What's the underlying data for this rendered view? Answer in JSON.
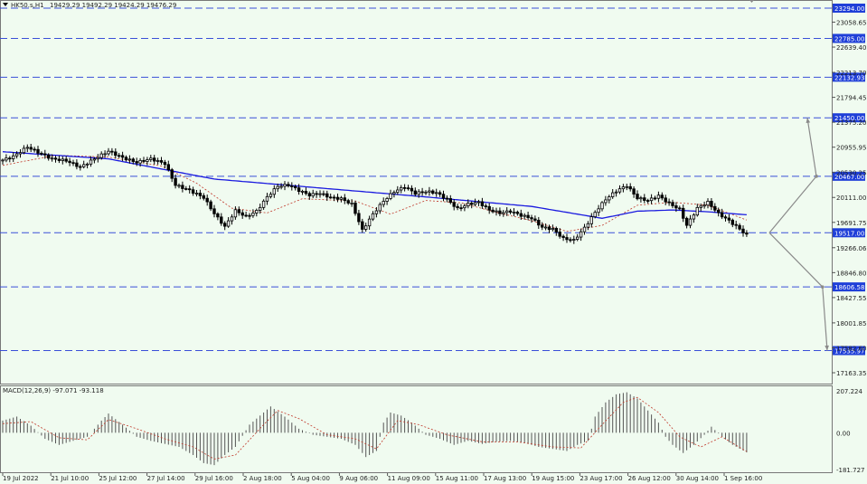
{
  "header": {
    "symbol": "HK50.s,H1",
    "ohlc": "19429.29 19492.29 19424.29 19476.29"
  },
  "chart_data": [
    {
      "type": "candlestick",
      "title": "HK50.s,H1",
      "ylim": [
        17163.65,
        23294.0
      ],
      "y_ticks": [
        "23058.65",
        "22639.40",
        "22213.70",
        "21794.45",
        "21375.20",
        "20955.95",
        "20530.25",
        "20111.00",
        "19691.75",
        "19266.06",
        "18846.80",
        "18427.55",
        "18001.85",
        "17582.60",
        "17163.35"
      ],
      "x_ticks": [
        "19 Jul 2022",
        "21 Jul 10:00",
        "25 Jul 12:00",
        "27 Jul 14:00",
        "29 Jul 16:00",
        "2 Aug 18:00",
        "5 Aug 04:00",
        "9 Aug 06:00",
        "11 Aug 09:00",
        "15 Aug 11:00",
        "17 Aug 13:00",
        "19 Aug 15:00",
        "23 Aug 17:00",
        "26 Aug 12:00",
        "30 Aug 14:00",
        "1 Sep 16:00"
      ],
      "closes_anchor": [
        [
          0,
          20740
        ],
        [
          3,
          20800
        ],
        [
          7,
          20960
        ],
        [
          10,
          20870
        ],
        [
          14,
          20760
        ],
        [
          18,
          20730
        ],
        [
          22,
          20620
        ],
        [
          26,
          20760
        ],
        [
          30,
          20890
        ],
        [
          34,
          20780
        ],
        [
          38,
          20700
        ],
        [
          42,
          20760
        ],
        [
          46,
          20680
        ],
        [
          49,
          20320
        ],
        [
          53,
          20230
        ],
        [
          57,
          20110
        ],
        [
          60,
          19840
        ],
        [
          63,
          19620
        ],
        [
          66,
          19890
        ],
        [
          69,
          19790
        ],
        [
          72,
          19880
        ],
        [
          75,
          20120
        ],
        [
          78,
          20300
        ],
        [
          81,
          20320
        ],
        [
          84,
          20230
        ],
        [
          87,
          20150
        ],
        [
          90,
          20180
        ],
        [
          93,
          20110
        ],
        [
          96,
          20090
        ],
        [
          99,
          20000
        ],
        [
          102,
          19560
        ],
        [
          105,
          19830
        ],
        [
          108,
          20050
        ],
        [
          111,
          20210
        ],
        [
          114,
          20290
        ],
        [
          117,
          20180
        ],
        [
          120,
          20210
        ],
        [
          123,
          20190
        ],
        [
          126,
          20080
        ],
        [
          129,
          19920
        ],
        [
          132,
          20000
        ],
        [
          135,
          20030
        ],
        [
          138,
          19900
        ],
        [
          141,
          19850
        ],
        [
          144,
          19880
        ],
        [
          147,
          19810
        ],
        [
          150,
          19760
        ],
        [
          153,
          19610
        ],
        [
          156,
          19580
        ],
        [
          159,
          19420
        ],
        [
          162,
          19390
        ],
        [
          165,
          19600
        ],
        [
          168,
          19860
        ],
        [
          171,
          20080
        ],
        [
          174,
          20220
        ],
        [
          177,
          20310
        ],
        [
          180,
          20100
        ],
        [
          183,
          20060
        ],
        [
          186,
          20140
        ],
        [
          189,
          20010
        ],
        [
          192,
          19910
        ],
        [
          194,
          19640
        ],
        [
          197,
          19930
        ],
        [
          200,
          20030
        ],
        [
          203,
          19840
        ],
        [
          206,
          19720
        ],
        [
          209,
          19580
        ],
        [
          211,
          19476
        ]
      ],
      "ma_blue": [
        [
          0,
          20880
        ],
        [
          30,
          20760
        ],
        [
          60,
          20420
        ],
        [
          90,
          20270
        ],
        [
          120,
          20120
        ],
        [
          150,
          19960
        ],
        [
          170,
          19760
        ],
        [
          180,
          19880
        ],
        [
          190,
          19900
        ],
        [
          200,
          19870
        ],
        [
          211,
          19820
        ]
      ],
      "ma_red_dotted": [
        [
          0,
          20650
        ],
        [
          15,
          20820
        ],
        [
          30,
          20790
        ],
        [
          45,
          20640
        ],
        [
          55,
          20350
        ],
        [
          65,
          19930
        ],
        [
          75,
          19850
        ],
        [
          85,
          20090
        ],
        [
          100,
          20050
        ],
        [
          110,
          19830
        ],
        [
          120,
          20060
        ],
        [
          130,
          20020
        ],
        [
          140,
          19860
        ],
        [
          150,
          19720
        ],
        [
          160,
          19540
        ],
        [
          170,
          19640
        ],
        [
          180,
          19980
        ],
        [
          190,
          20030
        ],
        [
          200,
          19980
        ],
        [
          211,
          19730
        ]
      ],
      "hlines": [
        23294.0,
        22785.0,
        22132.93,
        21450.0,
        20467.0,
        19517.0,
        18606.58,
        17535.97
      ],
      "hline_labels": [
        "23294.00",
        "22785.00",
        "22132.93",
        "21450.00",
        "20467.00",
        "19517.00",
        "18606.58",
        "17535.97"
      ],
      "arrows": [
        {
          "from": [
            19517.0,
            0
          ],
          "to": [
            21450.0,
            1
          ],
          "mid": [
            20467.0,
            0.5
          ]
        },
        {
          "from": [
            19517.0,
            0
          ],
          "to": [
            17535.97,
            1
          ],
          "mid": [
            18606.58,
            0.45
          ]
        }
      ]
    },
    {
      "type": "bar",
      "title": "MACD(12,26,9) -97.071 -93.118",
      "ylim": [
        -181.727,
        207.224
      ],
      "y_ticks": [
        "207.224",
        "0.00",
        "-181.727"
      ],
      "histogram_anchor": [
        [
          0,
          60
        ],
        [
          4,
          80
        ],
        [
          8,
          35
        ],
        [
          12,
          -30
        ],
        [
          16,
          -60
        ],
        [
          20,
          -40
        ],
        [
          24,
          -20
        ],
        [
          28,
          60
        ],
        [
          30,
          95
        ],
        [
          34,
          40
        ],
        [
          38,
          -20
        ],
        [
          42,
          -40
        ],
        [
          46,
          -55
        ],
        [
          50,
          -70
        ],
        [
          54,
          -110
        ],
        [
          57,
          -150
        ],
        [
          60,
          -160
        ],
        [
          63,
          -110
        ],
        [
          66,
          -70
        ],
        [
          70,
          40
        ],
        [
          74,
          100
        ],
        [
          76,
          130
        ],
        [
          80,
          80
        ],
        [
          84,
          20
        ],
        [
          88,
          -10
        ],
        [
          92,
          -20
        ],
        [
          96,
          -30
        ],
        [
          100,
          -60
        ],
        [
          103,
          -120
        ],
        [
          106,
          -90
        ],
        [
          108,
          50
        ],
        [
          110,
          100
        ],
        [
          113,
          85
        ],
        [
          116,
          50
        ],
        [
          120,
          -10
        ],
        [
          124,
          -30
        ],
        [
          128,
          -60
        ],
        [
          132,
          -40
        ],
        [
          136,
          -55
        ],
        [
          140,
          -45
        ],
        [
          144,
          -40
        ],
        [
          148,
          -50
        ],
        [
          152,
          -70
        ],
        [
          156,
          -80
        ],
        [
          160,
          -90
        ],
        [
          163,
          -60
        ],
        [
          166,
          -40
        ],
        [
          168,
          80
        ],
        [
          171,
          150
        ],
        [
          174,
          190
        ],
        [
          177,
          200
        ],
        [
          180,
          170
        ],
        [
          183,
          110
        ],
        [
          186,
          50
        ],
        [
          188,
          -20
        ],
        [
          190,
          -60
        ],
        [
          193,
          -100
        ],
        [
          196,
          -60
        ],
        [
          199,
          -10
        ],
        [
          201,
          30
        ],
        [
          204,
          -20
        ],
        [
          207,
          -60
        ],
        [
          211,
          -97
        ]
      ],
      "signal_anchor": [
        [
          0,
          45
        ],
        [
          8,
          55
        ],
        [
          16,
          -25
        ],
        [
          24,
          -35
        ],
        [
          30,
          65
        ],
        [
          38,
          20
        ],
        [
          46,
          -30
        ],
        [
          54,
          -70
        ],
        [
          60,
          -130
        ],
        [
          66,
          -110
        ],
        [
          74,
          40
        ],
        [
          78,
          110
        ],
        [
          84,
          70
        ],
        [
          92,
          -10
        ],
        [
          100,
          -30
        ],
        [
          106,
          -80
        ],
        [
          112,
          60
        ],
        [
          118,
          40
        ],
        [
          126,
          -10
        ],
        [
          136,
          -45
        ],
        [
          146,
          -45
        ],
        [
          156,
          -70
        ],
        [
          164,
          -75
        ],
        [
          170,
          40
        ],
        [
          176,
          150
        ],
        [
          180,
          175
        ],
        [
          186,
          100
        ],
        [
          192,
          -20
        ],
        [
          198,
          -70
        ],
        [
          204,
          -20
        ],
        [
          211,
          -93
        ]
      ]
    }
  ],
  "colors": {
    "background": "#f0fbf0",
    "candle": "#000000",
    "ma_blue": "#1a1adf",
    "ma_red": "#c0392b",
    "hline": "#3a4fd8",
    "label_bg": "#1f3fd8",
    "arrow": "#8a8a8a"
  }
}
